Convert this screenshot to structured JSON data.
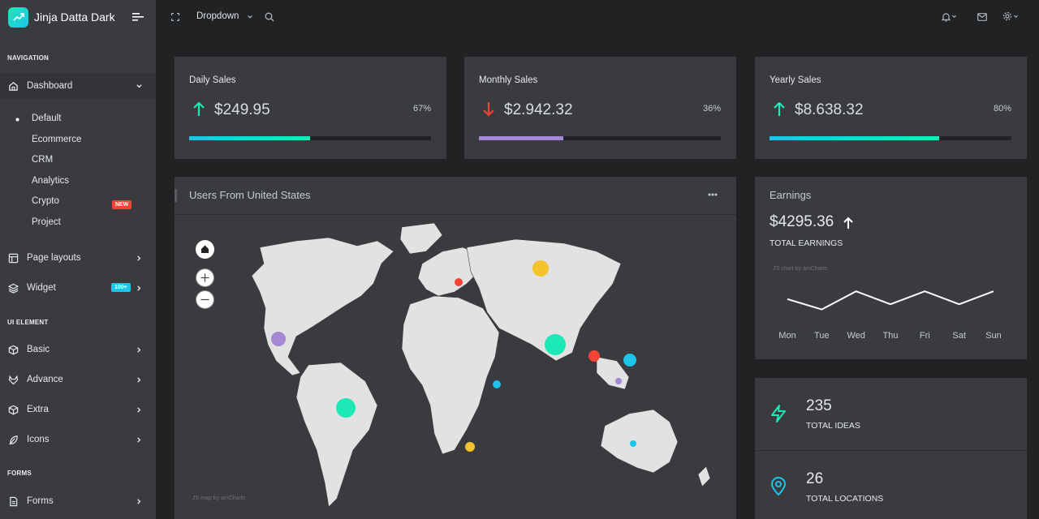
{
  "brand": {
    "name": "Jinja Datta Dark"
  },
  "topbar": {
    "dropdown_label": "Dropdown"
  },
  "sidebar": {
    "captions": {
      "navigation": "NAVIGATION",
      "ui_element": "UI ELEMENT",
      "forms": "FORMS"
    },
    "dashboard": {
      "label": "Dashboard",
      "sub_items": [
        "Default",
        "Ecommerce",
        "CRM",
        "Analytics",
        "Crypto",
        "Project"
      ],
      "crypto_badge": "NEW"
    },
    "page_layouts": "Page layouts",
    "widget": {
      "label": "Widget",
      "badge": "100+"
    },
    "basic": "Basic",
    "advance": "Advance",
    "extra": "Extra",
    "icons": "Icons",
    "forms": "Forms"
  },
  "stats": [
    {
      "title": "Daily Sales",
      "value": "$249.95",
      "percent": "67%",
      "direction": "up",
      "progress": 0.5,
      "bar_color": "#1de9b6"
    },
    {
      "title": "Monthly Sales",
      "value": "$2.942.32",
      "percent": "36%",
      "direction": "down",
      "progress": 0.35,
      "bar_color": "#a389d4"
    },
    {
      "title": "Yearly Sales",
      "value": "$8.638.32",
      "percent": "80%",
      "direction": "up",
      "progress": 0.7,
      "bar_color": "#1de9b6"
    }
  ],
  "users_card": {
    "title": "Users From United States",
    "credit": "JS map by amCharts"
  },
  "earnings": {
    "title": "Earnings",
    "value": "$4295.36",
    "label": "TOTAL EARNINGS",
    "credit": "JS chart by amCharts",
    "chart_data": {
      "type": "line",
      "categories": [
        "Mon",
        "Tue",
        "Wed",
        "Thu",
        "Fri",
        "Sat",
        "Sun"
      ],
      "values": [
        60,
        20,
        90,
        40,
        90,
        40,
        90
      ],
      "ylim": [
        0,
        100
      ]
    }
  },
  "info": [
    {
      "value": "235",
      "label": "TOTAL IDEAS",
      "icon": "zap-icon",
      "color": "#1de9b6"
    },
    {
      "value": "26",
      "label": "TOTAL LOCATIONS",
      "icon": "map-pin-icon",
      "color": "#1dc4e9"
    }
  ]
}
